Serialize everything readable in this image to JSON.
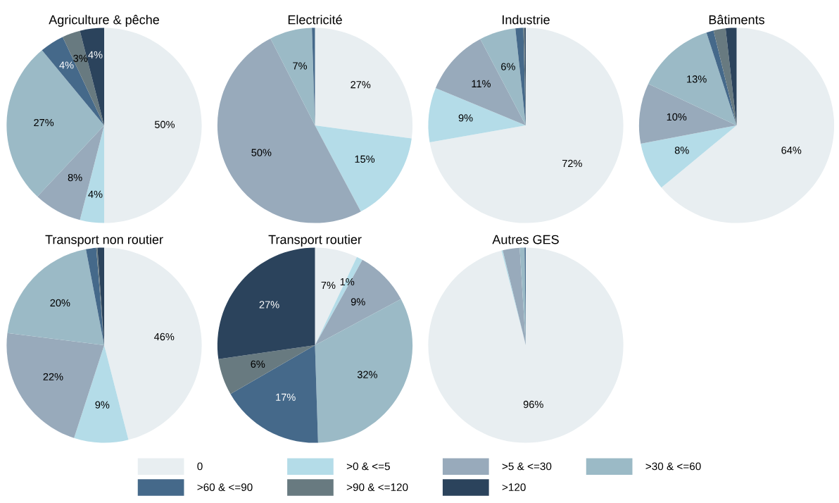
{
  "chart_data": [
    {
      "type": "pie",
      "title": "Agriculture & pêche",
      "legend": "bottom",
      "categories": [
        "0",
        ">0 & <=5",
        ">5 & <=30",
        ">30 & <=60",
        ">60 & <=90",
        ">90 & <=120",
        ">120"
      ],
      "colors": [
        "#e8eef1",
        "#b4dce8",
        "#98aabb",
        "#9bbac6",
        "#45698a",
        "#687a80",
        "#2b435c"
      ],
      "values": [
        50,
        4,
        8,
        27,
        4,
        3,
        4
      ],
      "value_labels": [
        "50%",
        "4%",
        "8%",
        "27%",
        "4%",
        "3%",
        "4%"
      ]
    },
    {
      "type": "pie",
      "title": "Electricité",
      "colors": [
        "#e8eef1",
        "#b4dce8",
        "#98aabb",
        "#9bbac6",
        "#45698a",
        "#687a80",
        "#2b435c"
      ],
      "values": [
        27,
        15,
        50,
        7,
        0.5,
        0,
        0
      ],
      "value_labels": [
        "27%",
        "15%",
        "50%",
        "7%",
        null,
        null,
        null
      ]
    },
    {
      "type": "pie",
      "title": "Industrie",
      "colors": [
        "#e8eef1",
        "#b4dce8",
        "#98aabb",
        "#9bbac6",
        "#45698a",
        "#687a80",
        "#2b435c"
      ],
      "values": [
        72,
        9,
        11,
        6,
        1.3,
        0.2,
        0.2
      ],
      "value_labels": [
        "72%",
        "9%",
        "11%",
        "6%",
        null,
        null,
        null
      ]
    },
    {
      "type": "pie",
      "title": "Bâtiments",
      "colors": [
        "#e8eef1",
        "#b4dce8",
        "#98aabb",
        "#9bbac6",
        "#45698a",
        "#687a80",
        "#2b435c"
      ],
      "values": [
        64,
        8,
        10,
        13,
        1.2,
        2,
        1.8
      ],
      "value_labels": [
        "64%",
        "8%",
        "10%",
        "13%",
        null,
        null,
        null
      ]
    },
    {
      "type": "pie",
      "title": "Transport non routier",
      "colors": [
        "#e8eef1",
        "#b4dce8",
        "#98aabb",
        "#9bbac6",
        "#45698a",
        "#687a80",
        "#2b435c"
      ],
      "values": [
        46,
        9,
        22,
        20,
        1.7,
        0.2,
        1.1
      ],
      "value_labels": [
        "46%",
        "9%",
        "22%",
        "20%",
        null,
        null,
        null
      ]
    },
    {
      "type": "pie",
      "title": "Transport routier",
      "colors": [
        "#e8eef1",
        "#b4dce8",
        "#98aabb",
        "#9bbac6",
        "#45698a",
        "#687a80",
        "#2b435c"
      ],
      "values": [
        7,
        1,
        9,
        32,
        17,
        6,
        27
      ],
      "value_labels": [
        "7%",
        "1%",
        "9%",
        "32%",
        "17%",
        "6%",
        "27%"
      ]
    },
    {
      "type": "pie",
      "title": "Autres GES",
      "colors": [
        "#e8eef1",
        "#b4dce8",
        "#98aabb",
        "#9bbac6",
        "#45698a",
        "#687a80",
        "#2b435c"
      ],
      "values": [
        96,
        0.2,
        2.8,
        0.8,
        0.2,
        0,
        0
      ],
      "value_labels": [
        "96%",
        null,
        null,
        null,
        null,
        null,
        null
      ]
    }
  ]
}
